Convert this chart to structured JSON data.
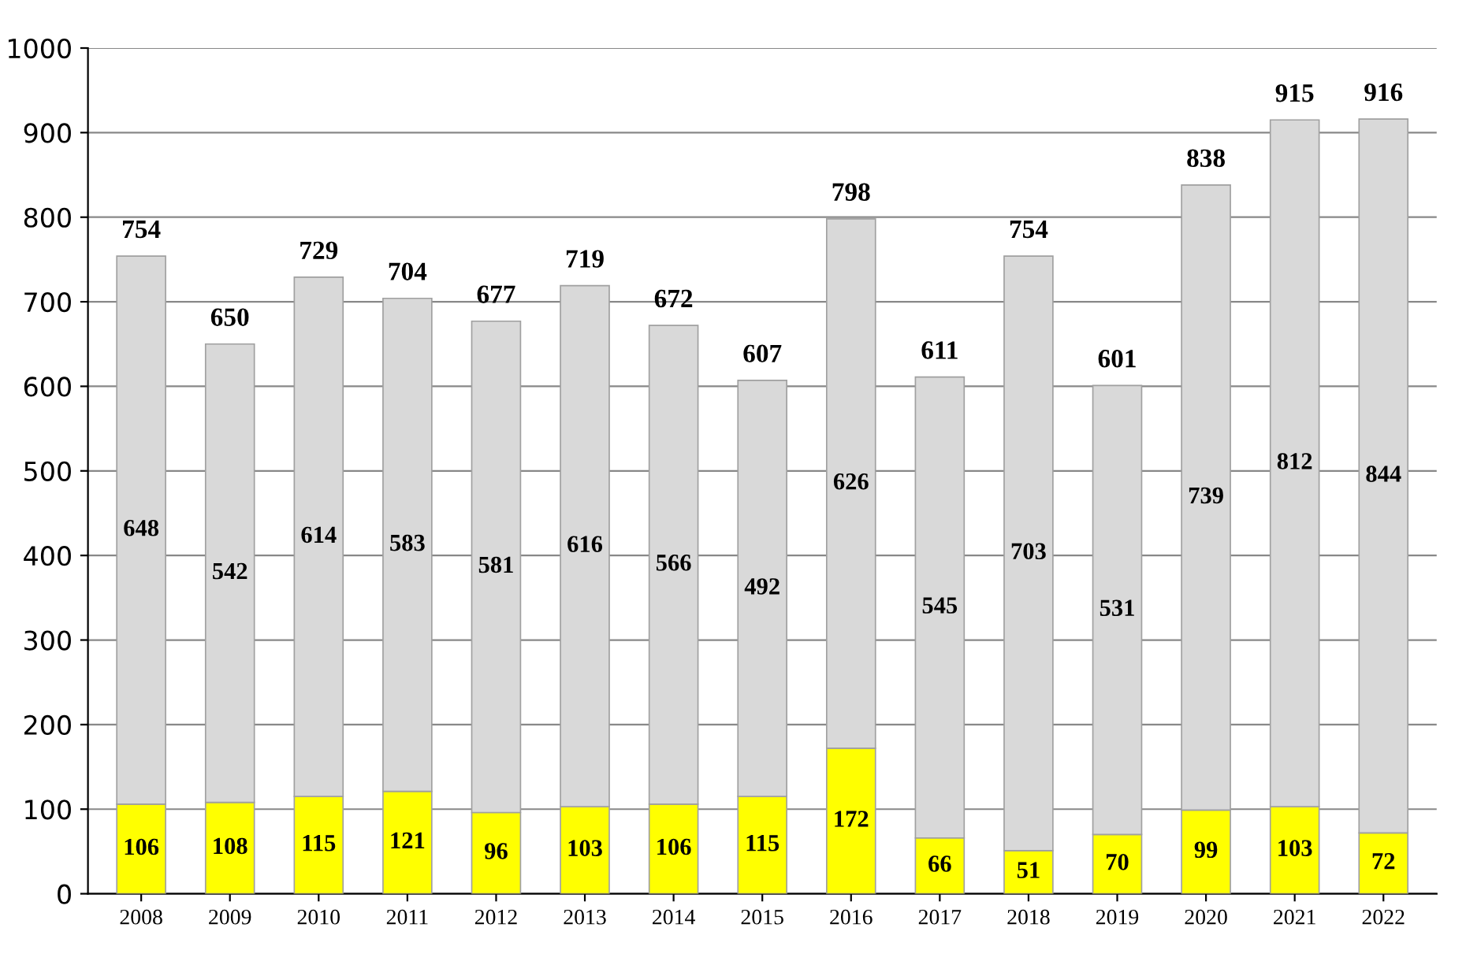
{
  "chart_data": {
    "type": "bar",
    "stacked": true,
    "categories": [
      "2008",
      "2009",
      "2010",
      "2011",
      "2012",
      "2013",
      "2014",
      "2015",
      "2016",
      "2017",
      "2018",
      "2019",
      "2020",
      "2021",
      "2022"
    ],
    "series": [
      {
        "color": "#ffff00",
        "values": [
          106,
          108,
          115,
          121,
          96,
          103,
          106,
          115,
          172,
          66,
          51,
          70,
          99,
          103,
          72
        ]
      },
      {
        "color": "#d9d9d9",
        "values": [
          648,
          542,
          614,
          583,
          581,
          616,
          566,
          492,
          626,
          545,
          703,
          531,
          739,
          812,
          844
        ]
      }
    ],
    "totals": [
      "754",
      "650",
      "729",
      "704",
      "677",
      "719",
      "672",
      "607",
      "798",
      "611",
      "754",
      "601",
      "838",
      "915",
      "916"
    ],
    "data_labels": true,
    "ylim": [
      0,
      1000
    ],
    "yticks": [
      0,
      100,
      200,
      300,
      400,
      500,
      600,
      700,
      800,
      900,
      1000
    ],
    "grid": "y"
  }
}
